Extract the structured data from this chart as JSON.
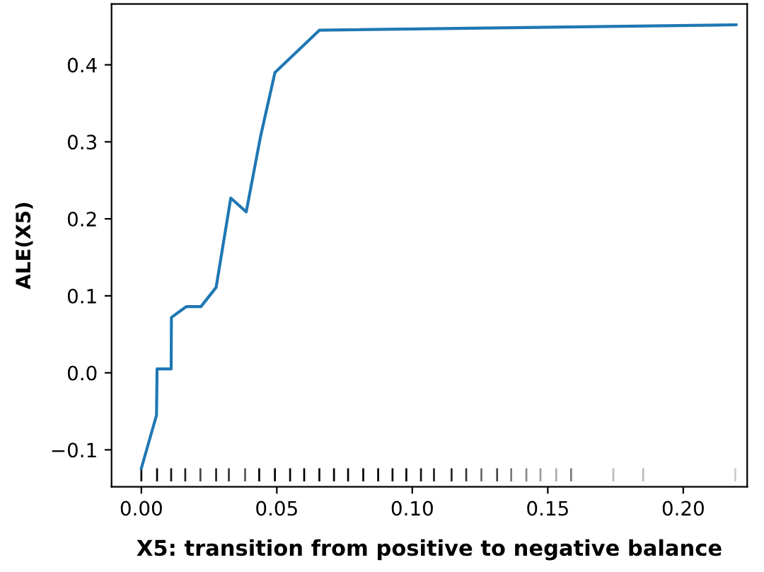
{
  "chart_data": {
    "type": "line",
    "xlabel": "X5: transition from positive to negative balance",
    "ylabel": "ALE(X5)",
    "xlim": [
      -0.011,
      0.2236
    ],
    "ylim": [
      -0.148,
      0.479
    ],
    "xticks": [
      {
        "value": 0,
        "label": "0.00"
      },
      {
        "value": 0.05,
        "label": "0.05"
      },
      {
        "value": 0.1,
        "label": "0.10"
      },
      {
        "value": 0.15,
        "label": "0.15"
      },
      {
        "value": 0.2,
        "label": "0.20"
      }
    ],
    "yticks": [
      {
        "value": -0.1,
        "label": "−0.1"
      },
      {
        "value": 0,
        "label": "0.0"
      },
      {
        "value": 0.1,
        "label": "0.1"
      },
      {
        "value": 0.2,
        "label": "0.2"
      },
      {
        "value": 0.3,
        "label": "0.3"
      },
      {
        "value": 0.4,
        "label": "0.4"
      }
    ],
    "grid": false,
    "series": [
      {
        "color": "#1f77b4",
        "x": [
          0,
          0.0056,
          0.0058,
          0.011,
          0.0111,
          0.0166,
          0.022,
          0.0276,
          0.033,
          0.0387,
          0.044,
          0.0493,
          0.0657,
          0.2195
        ],
        "values": [
          -0.124,
          -0.055,
          0.005,
          0.005,
          0.072,
          0.086,
          0.086,
          0.111,
          0.227,
          0.209,
          0.307,
          0.39,
          0.445,
          0.452
        ]
      },
      {
        "type": "bar",
        "base": [
          -0.141,
          -0.141,
          -0.141,
          -0.141,
          -0.141,
          -0.141,
          -0.141,
          -0.141,
          -0.141,
          -0.141,
          -0.141,
          -0.141,
          -0.141,
          -0.141,
          -0.141,
          -0.141,
          -0.141,
          -0.141,
          -0.141,
          -0.141,
          -0.141,
          -0.141,
          -0.141,
          -0.141,
          -0.141,
          -0.141,
          -0.141,
          -0.141,
          -0.141,
          -0.141,
          -0.141,
          -0.141,
          -0.141
        ],
        "x": [
          0,
          0.0058,
          0.011,
          0.0162,
          0.0218,
          0.0276,
          0.0323,
          0.0383,
          0.0435,
          0.0493,
          0.0549,
          0.0601,
          0.0657,
          0.0711,
          0.0763,
          0.0819,
          0.0874,
          0.0927,
          0.0978,
          0.1032,
          0.108,
          0.1145,
          0.1199,
          0.1255,
          0.1313,
          0.1365,
          0.1421,
          0.1473,
          0.1531,
          0.1586,
          0.1742,
          0.1852,
          0.2192
        ],
        "values": [
          0.017,
          0.017,
          0.017,
          0.017,
          0.017,
          0.017,
          0.017,
          0.017,
          0.017,
          0.017,
          0.017,
          0.017,
          0.017,
          0.017,
          0.017,
          0.017,
          0.017,
          0.017,
          0.017,
          0.017,
          0.017,
          0.017,
          0.017,
          0.017,
          0.017,
          0.017,
          0.017,
          0.017,
          0.017,
          0.017,
          0.017,
          0.017,
          0.017
        ],
        "colors": [
          "#000000",
          "#000000",
          "#111111",
          "#222222",
          "#444444",
          "#222222",
          "#333333",
          "#555555",
          "#000000",
          "#000000",
          "#000000",
          "#000000",
          "#000000",
          "#000000",
          "#000000",
          "#000000",
          "#000000",
          "#000000",
          "#000000",
          "#111111",
          "#222222",
          "#222222",
          "#333333",
          "#666666",
          "#444444",
          "#777777",
          "#888888",
          "#999999",
          "#aaaaaa",
          "#777777",
          "#bbbbbb",
          "#bbbbbb",
          "#cccccc"
        ]
      }
    ]
  }
}
